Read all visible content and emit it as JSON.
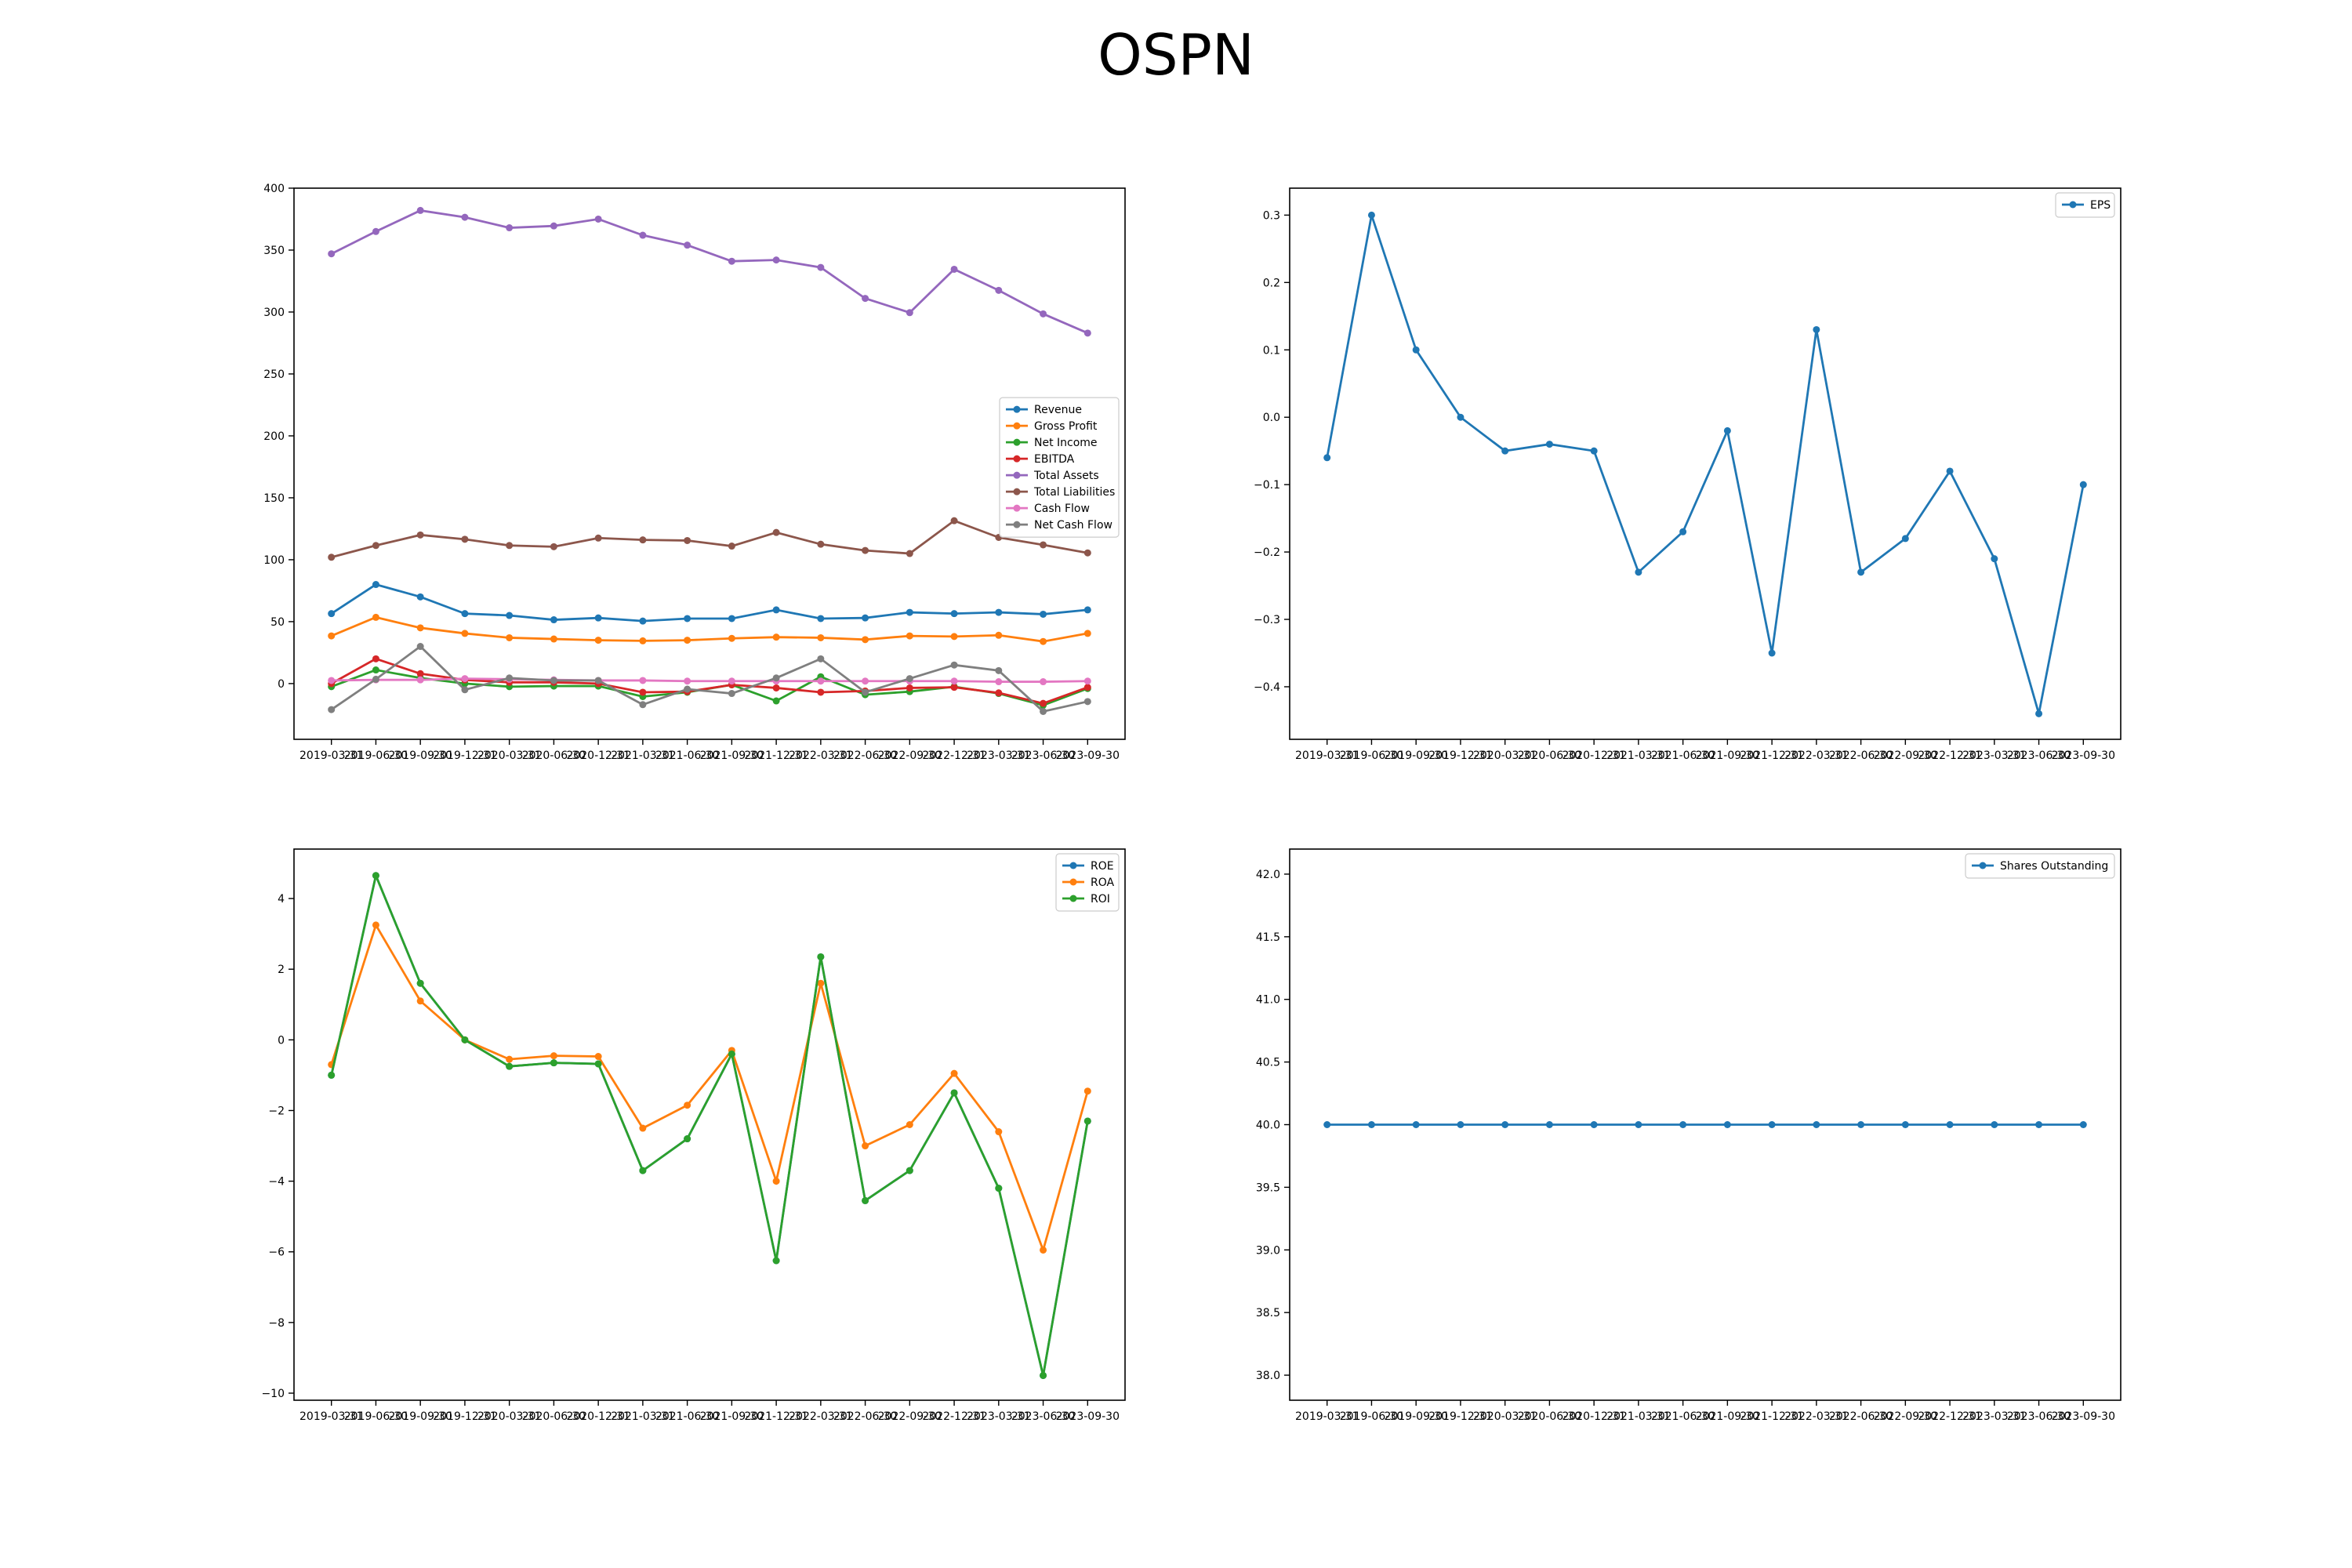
{
  "title": "OSPN",
  "x_labels": [
    "2019-03-31",
    "2019-06-30",
    "2019-09-30",
    "2019-12-31",
    "2020-03-31",
    "2020-06-30",
    "2020-12-31",
    "2021-03-31",
    "2021-06-30",
    "2021-09-30",
    "2021-12-31",
    "2022-03-31",
    "2022-06-30",
    "2022-09-30",
    "2022-12-31",
    "2023-03-31",
    "2023-06-30",
    "2023-09-30"
  ],
  "chart_data": [
    {
      "type": "line",
      "title": "",
      "xlabel": "",
      "ylabel": "",
      "ylim": [
        -45,
        400
      ],
      "yticks": [
        0,
        50,
        100,
        150,
        200,
        250,
        300,
        350,
        400
      ],
      "grid": false,
      "legend": "center-right",
      "series": [
        {
          "name": "Revenue",
          "color": "#1f77b4",
          "values": [
            56.5,
            80,
            70,
            56.5,
            55,
            51.5,
            53,
            50.5,
            52.5,
            52.5,
            59.5,
            52.5,
            53,
            57.5,
            56.5,
            57.5,
            56,
            59.5
          ]
        },
        {
          "name": "Gross Profit",
          "color": "#ff7f0e",
          "values": [
            38.5,
            53.5,
            45,
            40.5,
            37,
            36,
            35,
            34.5,
            35,
            36.5,
            37.5,
            37,
            35.5,
            38.5,
            38,
            39,
            34,
            40.5
          ]
        },
        {
          "name": "Net Income",
          "color": "#2ca02c",
          "values": [
            -2.5,
            11,
            4.5,
            0,
            -2.5,
            -2,
            -2,
            -10.5,
            -7,
            -1,
            -14,
            5.5,
            -9,
            -6.5,
            -2.5,
            -8,
            -17.5,
            -4
          ]
        },
        {
          "name": "EBITDA",
          "color": "#d62728",
          "values": [
            0,
            20,
            8,
            3,
            1,
            1,
            0,
            -7,
            -6.5,
            -1,
            -3.5,
            -7,
            -6,
            -3.5,
            -3,
            -7.5,
            -16,
            -3
          ]
        },
        {
          "name": "Total Assets",
          "color": "#9467bd",
          "values": [
            347,
            365,
            382,
            376.5,
            368,
            369.5,
            375,
            362,
            354,
            341,
            342,
            336,
            311,
            299.5,
            334.5,
            317.5,
            298.5,
            283
          ]
        },
        {
          "name": "Total Liabilities",
          "color": "#8c564b",
          "values": [
            102,
            111.5,
            120,
            116.5,
            111.5,
            110.5,
            117.5,
            116,
            115.5,
            111,
            122,
            112.5,
            107.5,
            105,
            131.5,
            118,
            112,
            105.5
          ]
        },
        {
          "name": "Cash Flow",
          "color": "#e377c2",
          "values": [
            2.5,
            3,
            3,
            4,
            3.5,
            3,
            2.5,
            2.5,
            2,
            2,
            2,
            2,
            2,
            2,
            2,
            1.5,
            1.5,
            2
          ]
        },
        {
          "name": "Net Cash Flow",
          "color": "#7f7f7f",
          "values": [
            -21,
            3.5,
            30,
            -5,
            4.5,
            2.5,
            2.5,
            -17,
            -4.5,
            -8,
            4.5,
            20,
            -7,
            4,
            15,
            10.5,
            -22.5,
            -14.5
          ]
        }
      ]
    },
    {
      "type": "line",
      "title": "",
      "xlabel": "",
      "ylabel": "",
      "ylim": [
        -0.478,
        0.34
      ],
      "yticks": [
        -0.4,
        -0.3,
        -0.2,
        -0.1,
        0.0,
        0.1,
        0.2,
        0.3
      ],
      "grid": false,
      "legend": "top-right",
      "series": [
        {
          "name": "EPS",
          "color": "#1f77b4",
          "values": [
            -0.06,
            0.3,
            0.1,
            0.0,
            -0.05,
            -0.04,
            -0.05,
            -0.23,
            -0.17,
            -0.02,
            -0.35,
            0.13,
            -0.23,
            -0.18,
            -0.08,
            -0.21,
            -0.44,
            -0.1
          ]
        }
      ]
    },
    {
      "type": "line",
      "title": "",
      "xlabel": "",
      "ylabel": "",
      "ylim": [
        -10.2,
        5.4
      ],
      "yticks": [
        -10,
        -8,
        -6,
        -4,
        -2,
        0,
        2,
        4
      ],
      "grid": false,
      "legend": "top-right",
      "series": [
        {
          "name": "ROE",
          "color": "#1f77b4",
          "values": [
            -1.0,
            4.65,
            1.6,
            0.0,
            -0.75,
            -0.65,
            -0.68,
            -3.7,
            -2.8,
            -0.4,
            -6.25,
            2.35,
            -4.55,
            -3.7,
            -1.5,
            -4.2,
            -9.5,
            -2.3
          ]
        },
        {
          "name": "ROA",
          "color": "#ff7f0e",
          "values": [
            -0.7,
            3.25,
            1.1,
            0.0,
            -0.55,
            -0.45,
            -0.47,
            -2.5,
            -1.85,
            -0.3,
            -4.0,
            1.6,
            -3.0,
            -2.4,
            -0.95,
            -2.6,
            -5.95,
            -1.45
          ]
        },
        {
          "name": "ROI",
          "color": "#2ca02c",
          "values": [
            -1.0,
            4.65,
            1.6,
            0.0,
            -0.75,
            -0.65,
            -0.68,
            -3.7,
            -2.8,
            -0.4,
            -6.25,
            2.35,
            -4.55,
            -3.7,
            -1.5,
            -4.2,
            -9.5,
            -2.3
          ]
        }
      ]
    },
    {
      "type": "line",
      "title": "",
      "xlabel": "",
      "ylabel": "",
      "ylim": [
        37.8,
        42.2
      ],
      "yticks": [
        38.0,
        38.5,
        39.0,
        39.5,
        40.0,
        40.5,
        41.0,
        41.5,
        42.0
      ],
      "grid": false,
      "legend": "top-right",
      "series": [
        {
          "name": "Shares Outstanding",
          "color": "#1f77b4",
          "values": [
            40,
            40,
            40,
            40,
            40,
            40,
            40,
            40,
            40,
            40,
            40,
            40,
            40,
            40,
            40,
            40,
            40,
            40
          ]
        }
      ]
    }
  ]
}
